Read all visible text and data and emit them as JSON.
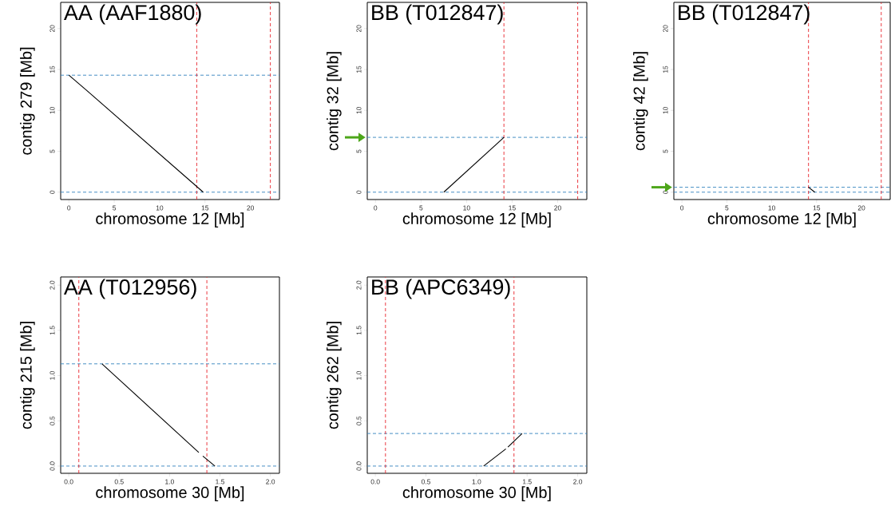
{
  "chart_data": [
    {
      "type": "line",
      "title": "AA (AAF1880)",
      "xlabel": "chromosome 12 [Mb]",
      "ylabel": "contig 279 [Mb]",
      "x": [
        0,
        2,
        14.8
      ],
      "series": [
        {
          "color": "#000000",
          "values": [
            14.3,
            12.4,
            0
          ]
        }
      ],
      "xlim": [
        -0.9,
        23.2
      ],
      "ylim": [
        -0.9,
        23.2
      ],
      "xticks": [
        0,
        5,
        10,
        15,
        20
      ],
      "yticks": [
        0,
        5,
        10,
        15,
        20
      ],
      "ref_lines": [
        {
          "axis": "y",
          "value": 14.3,
          "color": "#3182bd",
          "line_style": "dashed"
        },
        {
          "axis": "y",
          "value": 0,
          "color": "#3182bd",
          "line_style": "dashed"
        },
        {
          "axis": "x",
          "value": 14.1,
          "color": "#e8222a",
          "line_style": "dashed"
        },
        {
          "axis": "x",
          "value": 22.2,
          "color": "#e8222a",
          "line_style": "dashed"
        }
      ]
    },
    {
      "type": "line",
      "title": "BB (T012847)",
      "xlabel": "chromosome 12 [Mb]",
      "ylabel": "contig 32 [Mb]",
      "x": [
        7.5,
        14.1
      ],
      "series": [
        {
          "color": "#000000",
          "values": [
            0,
            6.7
          ]
        }
      ],
      "xlim": [
        -0.9,
        23.2
      ],
      "ylim": [
        -0.9,
        23.2
      ],
      "xticks": [
        0,
        5,
        10,
        15,
        20
      ],
      "yticks": [
        0,
        5,
        10,
        15,
        20
      ],
      "ref_lines": [
        {
          "axis": "y",
          "value": 6.7,
          "color": "#3182bd",
          "line_style": "dashed"
        },
        {
          "axis": "y",
          "value": 0,
          "color": "#3182bd",
          "line_style": "dashed"
        },
        {
          "axis": "x",
          "value": 14.1,
          "color": "#e8222a",
          "line_style": "dashed"
        },
        {
          "axis": "x",
          "value": 22.2,
          "color": "#e8222a",
          "line_style": "dashed"
        }
      ]
    },
    {
      "type": "line",
      "title": "BB (T012847)",
      "xlabel": "chromosome 12 [Mb]",
      "ylabel": "contig 42 [Mb]",
      "x": [
        14.1,
        14.8
      ],
      "series": [
        {
          "color": "#000000",
          "values": [
            0.6,
            0
          ]
        }
      ],
      "xlim": [
        -0.9,
        23.2
      ],
      "ylim": [
        -0.9,
        23.2
      ],
      "xticks": [
        0,
        5,
        10,
        15,
        20
      ],
      "yticks": [
        0,
        5,
        10,
        15,
        20
      ],
      "ref_lines": [
        {
          "axis": "y",
          "value": 0.6,
          "color": "#3182bd",
          "line_style": "dashed"
        },
        {
          "axis": "y",
          "value": 0,
          "color": "#3182bd",
          "line_style": "dashed"
        },
        {
          "axis": "x",
          "value": 14.1,
          "color": "#e8222a",
          "line_style": "dashed"
        },
        {
          "axis": "x",
          "value": 22.2,
          "color": "#e8222a",
          "line_style": "dashed"
        }
      ]
    },
    {
      "type": "line",
      "title": "AA (T012956)",
      "xlabel": "chromosome 30 [Mb]",
      "ylabel": "contig 215 [Mb]",
      "x": [
        0.33,
        1.29,
        1.31,
        1.33,
        1.45
      ],
      "series": [
        {
          "color": "#000000",
          "values": [
            1.13,
            0.15,
            null,
            0.11,
            0
          ]
        }
      ],
      "xlim": [
        -0.08,
        2.09
      ],
      "ylim": [
        -0.08,
        2.09
      ],
      "xticks": [
        {
          "value": 0,
          "label": "0.0"
        },
        {
          "value": 0.5,
          "label": "0.5"
        },
        {
          "value": 1,
          "label": "1.0"
        },
        {
          "value": 1.5,
          "label": "1.5"
        },
        {
          "value": 2,
          "label": "2.0"
        }
      ],
      "yticks": [
        {
          "value": 0,
          "label": "0.0"
        },
        {
          "value": 0.5,
          "label": "0.5"
        },
        {
          "value": 1,
          "label": "1.0"
        },
        {
          "value": 1.5,
          "label": "1.5"
        },
        {
          "value": 2,
          "label": "2.0"
        }
      ],
      "ref_lines": [
        {
          "axis": "y",
          "value": 1.13,
          "color": "#3182bd",
          "line_style": "dashed"
        },
        {
          "axis": "y",
          "value": 0,
          "color": "#3182bd",
          "line_style": "dashed"
        },
        {
          "axis": "x",
          "value": 0.1,
          "color": "#e8222a",
          "line_style": "dashed"
        },
        {
          "axis": "x",
          "value": 1.37,
          "color": "#e8222a",
          "line_style": "dashed"
        }
      ]
    },
    {
      "type": "line",
      "title": "BB (APC6349)",
      "xlabel": "chromosome 30 [Mb]",
      "ylabel": "contig 262 [Mb]",
      "x": [
        1.07,
        1.29,
        1.3,
        1.31,
        1.45
      ],
      "series": [
        {
          "color": "#000000",
          "values": [
            0,
            0.19,
            null,
            0.21,
            0.36
          ]
        }
      ],
      "xlim": [
        -0.08,
        2.09
      ],
      "ylim": [
        -0.08,
        2.09
      ],
      "xticks": [
        {
          "value": 0,
          "label": "0.0"
        },
        {
          "value": 0.5,
          "label": "0.5"
        },
        {
          "value": 1,
          "label": "1.0"
        },
        {
          "value": 1.5,
          "label": "1.5"
        },
        {
          "value": 2,
          "label": "2.0"
        }
      ],
      "yticks": [
        {
          "value": 0,
          "label": "0.0"
        },
        {
          "value": 0.5,
          "label": "0.5"
        },
        {
          "value": 1,
          "label": "1.0"
        },
        {
          "value": 1.5,
          "label": "1.5"
        },
        {
          "value": 2,
          "label": "2.0"
        }
      ],
      "ref_lines": [
        {
          "axis": "y",
          "value": 0.36,
          "color": "#3182bd",
          "line_style": "dashed"
        },
        {
          "axis": "y",
          "value": 0,
          "color": "#3182bd",
          "line_style": "dashed"
        },
        {
          "axis": "x",
          "value": 0.1,
          "color": "#e8222a",
          "line_style": "dashed"
        },
        {
          "axis": "x",
          "value": 1.37,
          "color": "#e8222a",
          "line_style": "dashed"
        }
      ]
    }
  ]
}
